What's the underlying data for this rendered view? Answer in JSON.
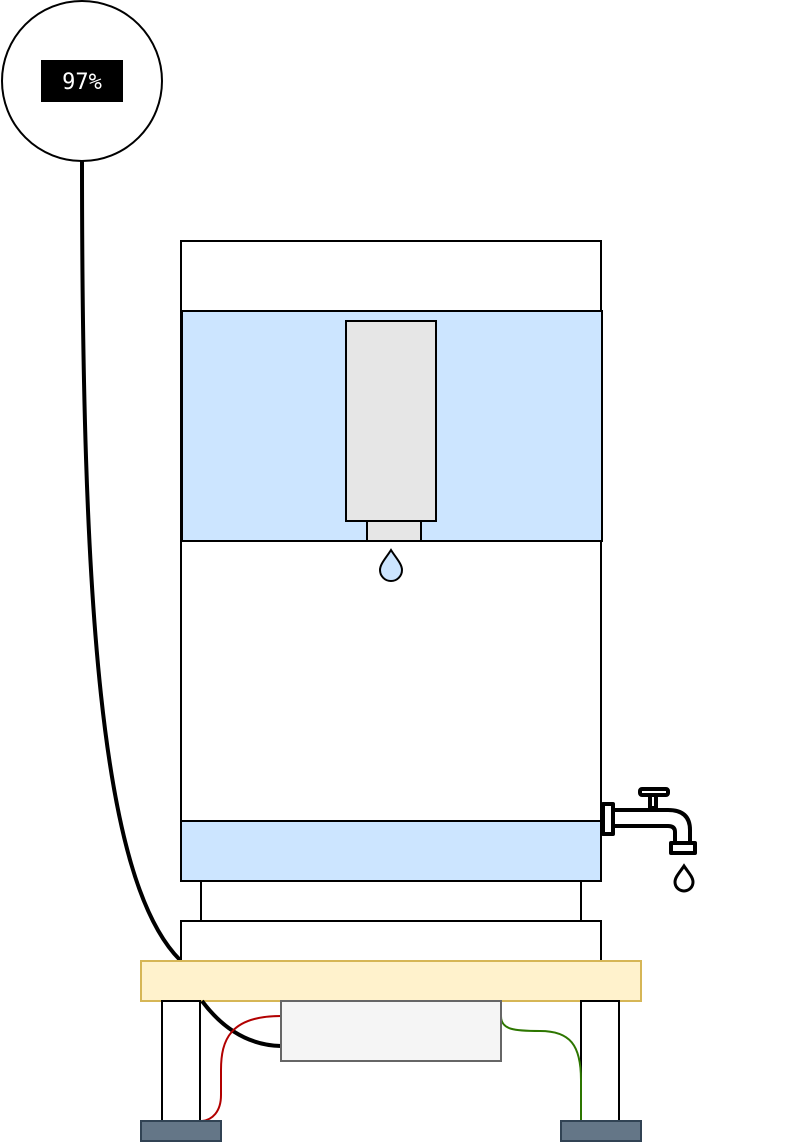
{
  "gauge": {
    "readout": "97%",
    "level_percent": 97
  },
  "colors": {
    "water": "#cce5ff",
    "filter_cartridge": "#e6e6e6",
    "base_plate": "#fff2cc",
    "base_plate_border": "#d6b656",
    "electronics_box": "#f5f5f5",
    "feet": "#647687",
    "wire_red": "#b20000",
    "wire_green": "#2d7600",
    "gauge_cable": "#000000",
    "label_bg": "#000000"
  },
  "icons": {
    "faucet": "faucet-icon",
    "drop": "water-drop-icon"
  }
}
